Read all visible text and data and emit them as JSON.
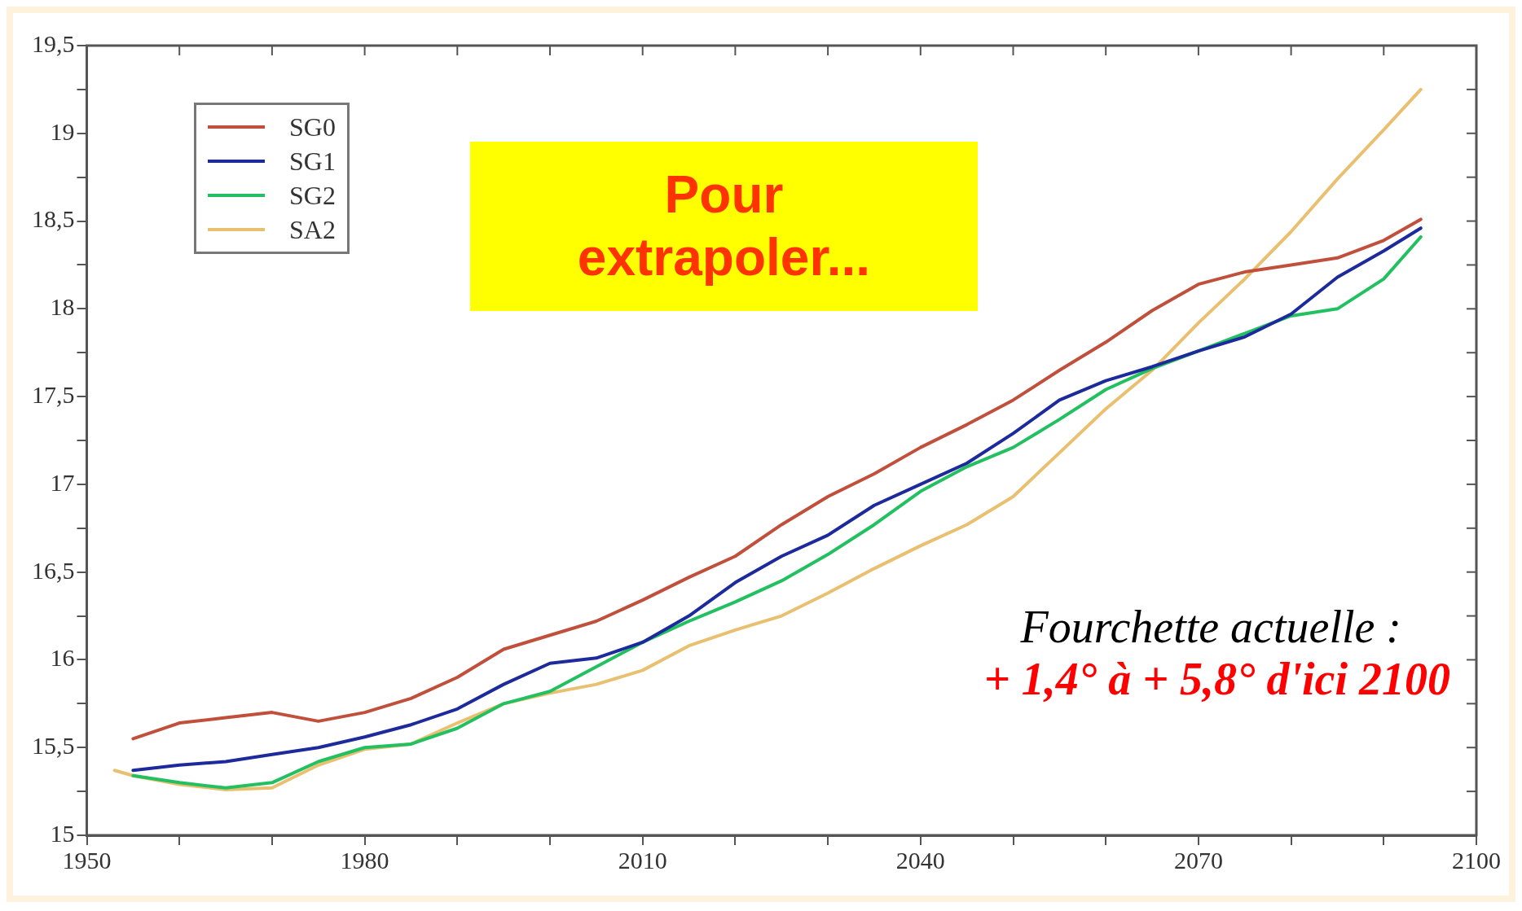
{
  "chart_data": {
    "type": "line",
    "legend": "top left",
    "marker": "none",
    "line_style": "solid",
    "annotations": [
      "Pour extrapoler...",
      "Fourchette actuelle :",
      "+ 1,4° à + 5,8° d'ici 2100"
    ],
    "xlim": [
      1950,
      2100
    ],
    "xticks": [
      1950,
      {
        "value": 1960,
        "label": null
      },
      {
        "value": 1970,
        "label": null
      },
      1980,
      {
        "value": 1990,
        "label": null
      },
      {
        "value": 2000,
        "label": null
      },
      2010,
      {
        "value": 2020,
        "label": null
      },
      {
        "value": 2030,
        "label": null
      },
      2040,
      {
        "value": 2050,
        "label": null
      },
      {
        "value": 2060,
        "label": null
      },
      2070,
      {
        "value": 2080,
        "label": null
      },
      {
        "value": 2090,
        "label": null
      },
      2100
    ],
    "ylim": [
      15,
      19.5
    ],
    "yticks": [
      15,
      {
        "value": 15.25,
        "label": null
      },
      {
        "value": 15.5,
        "label": "15,5"
      },
      {
        "value": 15.75,
        "label": null
      },
      16,
      {
        "value": 16.25,
        "label": null
      },
      {
        "value": 16.5,
        "label": "16,5"
      },
      {
        "value": 16.75,
        "label": null
      },
      17,
      {
        "value": 17.25,
        "label": null
      },
      {
        "value": 17.5,
        "label": "17,5"
      },
      {
        "value": 17.75,
        "label": null
      },
      18,
      {
        "value": 18.25,
        "label": null
      },
      {
        "value": 18.5,
        "label": "18,5"
      },
      {
        "value": 18.75,
        "label": null
      },
      19,
      {
        "value": 19.25,
        "label": null
      },
      {
        "value": 19.5,
        "label": "19,5"
      }
    ],
    "series": [
      {
        "name": "SG0",
        "color": "#c0503c",
        "x": [
          1955,
          1960,
          1965,
          1970,
          1975,
          1980,
          1985,
          1990,
          1995,
          2000,
          2005,
          2010,
          2015,
          2020,
          2025,
          2030,
          2035,
          2040,
          2045,
          2050,
          2055,
          2060,
          2065,
          2070,
          2075,
          2080,
          2085,
          2090,
          2094
        ],
        "values": [
          15.55,
          15.64,
          15.67,
          15.7,
          15.65,
          15.7,
          15.78,
          15.9,
          16.06,
          16.14,
          16.22,
          16.34,
          16.47,
          16.59,
          16.77,
          16.93,
          17.06,
          17.21,
          17.34,
          17.48,
          17.65,
          17.81,
          17.99,
          18.14,
          18.21,
          18.25,
          18.29,
          18.39,
          18.51
        ]
      },
      {
        "name": "SG1",
        "color": "#1c2a9c",
        "x": [
          1955,
          1960,
          1965,
          1970,
          1975,
          1980,
          1985,
          1990,
          1995,
          2000,
          2005,
          2010,
          2015,
          2020,
          2025,
          2030,
          2035,
          2040,
          2045,
          2050,
          2055,
          2060,
          2065,
          2070,
          2075,
          2080,
          2085,
          2090,
          2094
        ],
        "values": [
          15.37,
          15.4,
          15.42,
          15.46,
          15.5,
          15.56,
          15.63,
          15.72,
          15.86,
          15.98,
          16.01,
          16.1,
          16.25,
          16.44,
          16.59,
          16.71,
          16.88,
          17.0,
          17.12,
          17.29,
          17.48,
          17.59,
          17.67,
          17.76,
          17.84,
          17.97,
          18.18,
          18.33,
          18.46
        ]
      },
      {
        "name": "SG2",
        "color": "#22c060",
        "x": [
          1955,
          1960,
          1965,
          1970,
          1975,
          1980,
          1985,
          1990,
          1995,
          2000,
          2005,
          2010,
          2015,
          2020,
          2025,
          2030,
          2035,
          2040,
          2045,
          2050,
          2055,
          2060,
          2065,
          2070,
          2075,
          2080,
          2085,
          2090,
          2094
        ],
        "values": [
          15.34,
          15.3,
          15.27,
          15.3,
          15.42,
          15.5,
          15.52,
          15.61,
          15.75,
          15.82,
          15.96,
          16.1,
          16.22,
          16.33,
          16.45,
          16.6,
          16.77,
          16.96,
          17.1,
          17.21,
          17.37,
          17.54,
          17.66,
          17.76,
          17.86,
          17.96,
          18.0,
          18.17,
          18.41
        ]
      },
      {
        "name": "SA2",
        "color": "#e8c070",
        "x": [
          1953,
          1955,
          1960,
          1965,
          1970,
          1975,
          1980,
          1985,
          1990,
          1995,
          2000,
          2005,
          2010,
          2015,
          2020,
          2025,
          2030,
          2035,
          2040,
          2045,
          2050,
          2055,
          2060,
          2065,
          2070,
          2075,
          2080,
          2085,
          2090,
          2094
        ],
        "values": [
          15.37,
          15.34,
          15.29,
          15.26,
          15.27,
          15.4,
          15.49,
          15.52,
          15.64,
          15.75,
          15.81,
          15.86,
          15.94,
          16.08,
          16.17,
          16.25,
          16.38,
          16.52,
          16.65,
          16.77,
          16.93,
          17.18,
          17.43,
          17.65,
          17.92,
          18.17,
          18.44,
          18.74,
          19.02,
          19.25
        ]
      }
    ]
  }
}
